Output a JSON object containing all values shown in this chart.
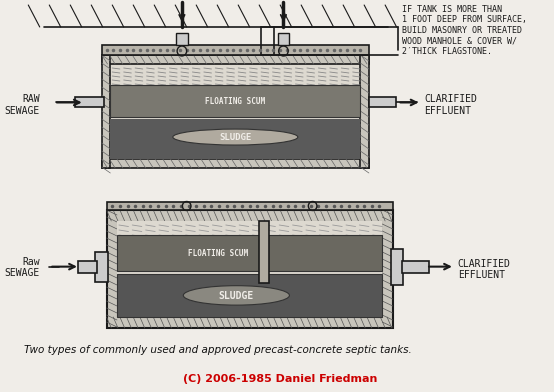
{
  "background_color": "#f0ede8",
  "title": "Two types of commonly used and approved precast-concrete septic tanks.",
  "copyright": "(C) 2006-1985 Daniel Friedman",
  "copyright_color": "#cc0000",
  "ink_color": "#1a1a1a",
  "tank1": {
    "note": "IF TANK IS MORE THAN\n1 FOOT DEEP FROM SURFACE,\nBUILD MASONRY OR TREATED\nWOOD MANHOLE & COVER W/\n2′THICK FLAGSTONE.",
    "label_floating_scum": "FLOATING SCUM",
    "label_sludge": "SLUDGE",
    "raw_sewage_label": "RAW\nSEWAGE",
    "clarified_label": "CLARIFIED\nEFFLUENT"
  },
  "tank2": {
    "label_floating_scum": "FLOATING SCUM",
    "label_sludge": "SLUDGE",
    "raw_sewage_label": "Raw\nSEWAGE",
    "clarified_label": "CLARIFIED\nEFFLUENT"
  }
}
